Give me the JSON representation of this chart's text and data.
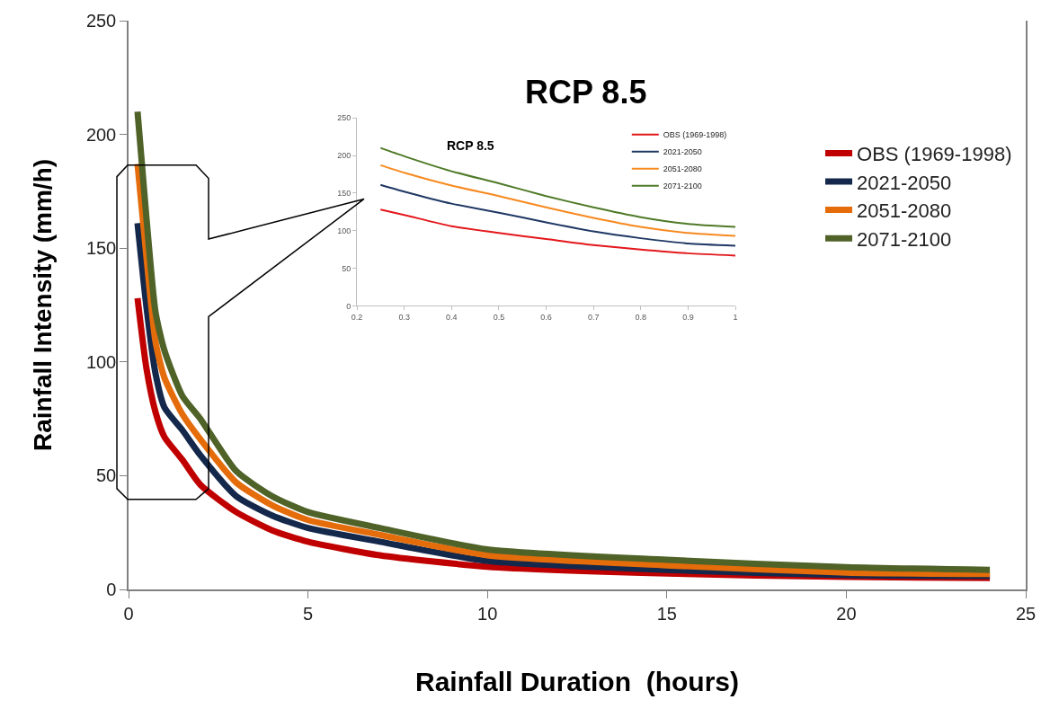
{
  "chart_data": [
    {
      "type": "line",
      "title": "RCP 8.5",
      "xlabel": "Rainfall Duration  (hours)",
      "ylabel": "Rainfall Intensity (mm/h)",
      "x": [
        0.25,
        0.5,
        0.75,
        1,
        1.5,
        2,
        3,
        4,
        5,
        7,
        10,
        15,
        20,
        24
      ],
      "series": [
        {
          "name": "OBS (1969-1998)",
          "color": "#c00000",
          "values": [
            128,
            97,
            78,
            67,
            57,
            46,
            34,
            26,
            21,
            15,
            10,
            7,
            5.5,
            5
          ]
        },
        {
          "name": "2021-2050",
          "color": "#14284b",
          "values": [
            161,
            124,
            95,
            80,
            70,
            59,
            41,
            32.5,
            27,
            21,
            12.5,
            8.6,
            6.3,
            5.9
          ]
        },
        {
          "name": "2051-2080",
          "color": "#e46c0a",
          "values": [
            187,
            146,
            109,
            93,
            77,
            66,
            47,
            37,
            30.5,
            24,
            15,
            10.6,
            7.4,
            6.8
          ]
        },
        {
          "name": "2071-2100",
          "color": "#4f6228",
          "values": [
            210,
            163,
            122,
            105,
            85,
            75,
            52,
            41,
            34,
            27,
            17.6,
            13,
            9.8,
            8.6
          ]
        }
      ],
      "xlim": [
        0,
        25
      ],
      "ylim": [
        0,
        250
      ],
      "xticks": [
        0,
        5,
        10,
        15,
        20,
        25
      ],
      "yticks": [
        0,
        50,
        100,
        150,
        200,
        250
      ],
      "legend": "top right"
    },
    {
      "type": "line",
      "title": "RCP 8.5",
      "x": [
        0.25,
        0.3,
        0.4,
        0.5,
        0.6,
        0.7,
        0.8,
        0.9,
        1
      ],
      "series": [
        {
          "name": "OBS (1969-1998)",
          "color": "#e3171b",
          "values": [
            128,
            121,
            106,
            97,
            89,
            81,
            75,
            70,
            67
          ]
        },
        {
          "name": "2021-2050",
          "color": "#1f3864",
          "values": [
            161,
            152,
            136,
            124,
            111,
            99,
            90,
            83,
            80
          ]
        },
        {
          "name": "2051-2080",
          "color": "#f7891f",
          "values": [
            187,
            177,
            160,
            146,
            131,
            117,
            105,
            97,
            93
          ]
        },
        {
          "name": "2071-2100",
          "color": "#4f7a28",
          "values": [
            210,
            199,
            179,
            163,
            146,
            131,
            118,
            109,
            105
          ]
        }
      ],
      "xlim": [
        0.2,
        1
      ],
      "ylim": [
        0,
        250
      ],
      "xticks": [
        0.2,
        0.3,
        0.4,
        0.5,
        0.6,
        0.7,
        0.8,
        0.9,
        1
      ],
      "yticks": [
        0,
        50,
        100,
        150,
        200,
        250
      ],
      "legend": "top right"
    }
  ]
}
